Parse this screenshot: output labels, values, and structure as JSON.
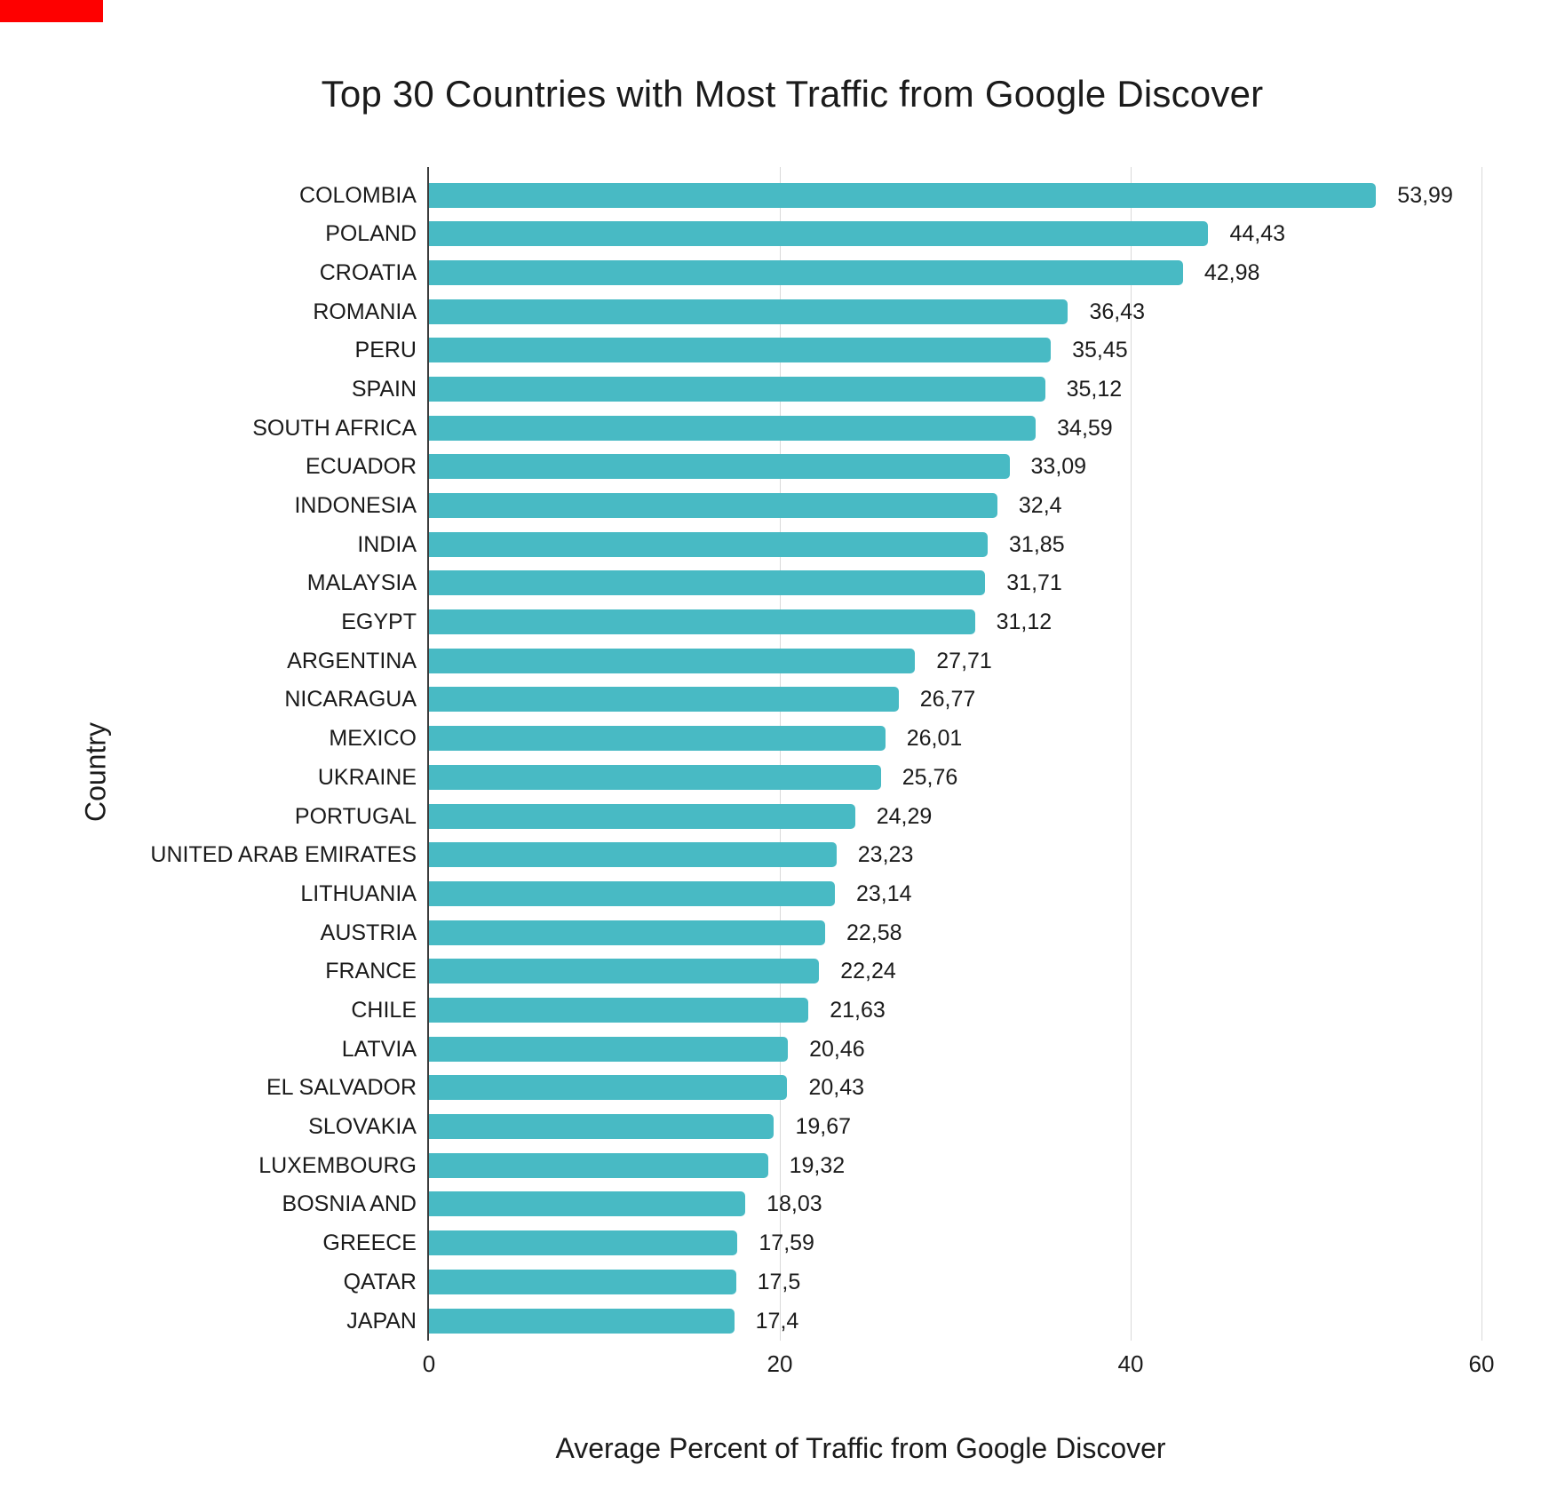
{
  "decorations": {
    "corner_marker_color": "#fe0000"
  },
  "chart_data": {
    "type": "bar",
    "orientation": "horizontal",
    "title": "Top 30 Countries with Most Traffic from Google Discover",
    "xlabel": "Average Percent of Traffic from Google Discover",
    "ylabel": "Country",
    "categories": [
      "COLOMBIA",
      "POLAND",
      "CROATIA",
      "ROMANIA",
      "PERU",
      "SPAIN",
      "SOUTH AFRICA",
      "ECUADOR",
      "INDONESIA",
      "INDIA",
      "MALAYSIA",
      "EGYPT",
      "ARGENTINA",
      "NICARAGUA",
      "MEXICO",
      "UKRAINE",
      "PORTUGAL",
      "UNITED ARAB EMIRATES",
      "LITHUANIA",
      "AUSTRIA",
      "FRANCE",
      "CHILE",
      "LATVIA",
      "EL SALVADOR",
      "SLOVAKIA",
      "LUXEMBOURG",
      "BOSNIA AND",
      "GREECE",
      "QATAR",
      "JAPAN"
    ],
    "values": [
      53.99,
      44.43,
      42.98,
      36.43,
      35.45,
      35.12,
      34.59,
      33.09,
      32.4,
      31.85,
      31.71,
      31.12,
      27.71,
      26.77,
      26.01,
      25.76,
      24.29,
      23.23,
      23.14,
      22.58,
      22.24,
      21.63,
      20.46,
      20.43,
      19.67,
      19.32,
      18.03,
      17.59,
      17.5,
      17.4
    ],
    "value_labels": [
      "53,99",
      "44,43",
      "42,98",
      "36,43",
      "35,45",
      "35,12",
      "34,59",
      "33,09",
      "32,4",
      "31,85",
      "31,71",
      "31,12",
      "27,71",
      "26,77",
      "26,01",
      "25,76",
      "24,29",
      "23,23",
      "23,14",
      "22,58",
      "22,24",
      "21,63",
      "20,46",
      "20,43",
      "19,67",
      "19,32",
      "18,03",
      "17,59",
      "17,5",
      "17,4"
    ],
    "xlim": [
      0,
      60
    ],
    "xticks": [
      0,
      20,
      40,
      60
    ],
    "xtick_labels": [
      "0",
      "20",
      "40",
      "60"
    ],
    "grid": "vertical gridlines at 20/40/60",
    "legend": "none",
    "colors": {
      "bar": "#48bac4",
      "gridline": "#dadada",
      "axis": "#3c3c3c",
      "text": "#1b1b1b",
      "background": "#ffffff"
    }
  }
}
